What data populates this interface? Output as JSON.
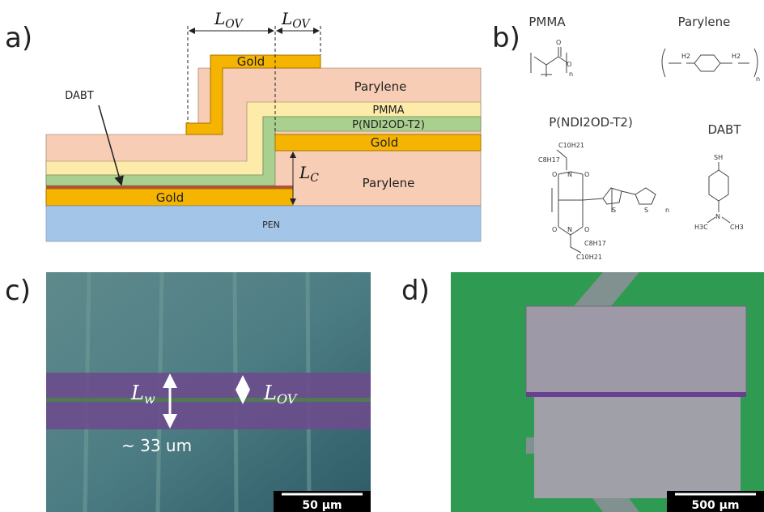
{
  "panel_a": {
    "label": "a)",
    "layers": {
      "gold_top": "Gold",
      "parylene_top": "Parylene",
      "pmma": "PMMA",
      "semiconductor": "P(NDI2OD-T2)",
      "gold_middle": "Gold",
      "parylene_bottom": "Parylene",
      "gold_bottom": "Gold",
      "substrate": "PEN"
    },
    "dabt": "DABT",
    "overlap_left": {
      "symbol": "L",
      "sub": "OV"
    },
    "overlap_right": {
      "symbol": "L",
      "sub": "OV"
    },
    "channel": {
      "symbol": "L",
      "sub": "C"
    }
  },
  "panel_b": {
    "label": "b)",
    "pmma": {
      "name": "PMMA",
      "atoms": [
        "O",
        "O",
        "n"
      ]
    },
    "parylene": {
      "name": "Parylene",
      "atoms": [
        "H2",
        "H2",
        "n"
      ]
    },
    "polymer": {
      "name": "P(NDI2OD-T2)",
      "atoms": [
        "C10H21",
        "C8H17",
        "O",
        "N",
        "O",
        "S",
        "S",
        "O",
        "N",
        "O",
        "C8H17",
        "C10H21",
        "n"
      ]
    },
    "dabt": {
      "name": "DABT",
      "atoms": [
        "SH",
        "H3C",
        "N",
        "CH3"
      ]
    }
  },
  "panel_c": {
    "label": "c)",
    "width": {
      "symbol": "L",
      "sub": "w"
    },
    "overlap": {
      "symbol": "L",
      "sub": "OV"
    },
    "annotation": "~ 33 um",
    "scale_bar": "50 µm"
  },
  "panel_d": {
    "label": "d)",
    "scale_bar": "500 µm"
  }
}
